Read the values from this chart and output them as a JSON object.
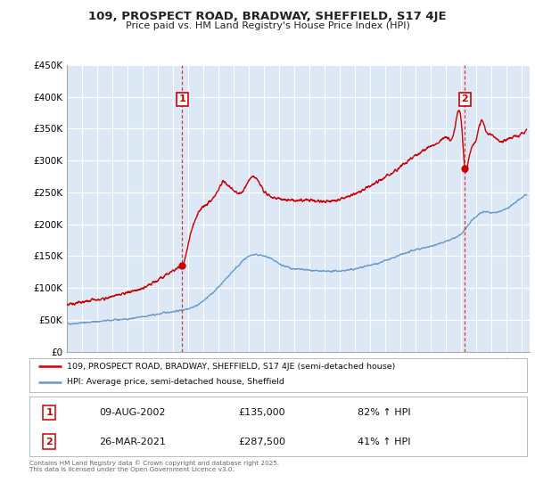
{
  "title": "109, PROSPECT ROAD, BRADWAY, SHEFFIELD, S17 4JE",
  "subtitle": "Price paid vs. HM Land Registry's House Price Index (HPI)",
  "legend_red": "109, PROSPECT ROAD, BRADWAY, SHEFFIELD, S17 4JE (semi-detached house)",
  "legend_blue": "HPI: Average price, semi-detached house, Sheffield",
  "footer": "Contains HM Land Registry data © Crown copyright and database right 2025.\nThis data is licensed under the Open Government Licence v3.0.",
  "xlim": [
    1995.0,
    2025.5
  ],
  "ylim": [
    0,
    450000
  ],
  "yticks": [
    0,
    50000,
    100000,
    150000,
    200000,
    250000,
    300000,
    350000,
    400000,
    450000
  ],
  "ytick_labels": [
    "£0",
    "£50K",
    "£100K",
    "£150K",
    "£200K",
    "£250K",
    "£300K",
    "£350K",
    "£400K",
    "£450K"
  ],
  "xticks": [
    1995,
    1996,
    1997,
    1998,
    1999,
    2000,
    2001,
    2002,
    2003,
    2004,
    2005,
    2006,
    2007,
    2008,
    2009,
    2010,
    2011,
    2012,
    2013,
    2014,
    2015,
    2016,
    2017,
    2018,
    2019,
    2020,
    2021,
    2022,
    2023,
    2024,
    2025
  ],
  "marker1_x": 2002.607,
  "marker1_y": 135000,
  "marker1_label": "1",
  "marker1_date": "09-AUG-2002",
  "marker1_price": "£135,000",
  "marker1_hpi": "82% ↑ HPI",
  "marker2_x": 2021.23,
  "marker2_y": 287500,
  "marker2_label": "2",
  "marker2_date": "26-MAR-2021",
  "marker2_price": "£287,500",
  "marker2_hpi": "41% ↑ HPI",
  "red_color": "#cc0000",
  "blue_color": "#6699cc",
  "background_color": "#dce8f5",
  "grid_color": "#ffffff",
  "vline_color": "#dd3333",
  "blue_anchors_x": [
    1995,
    1995.5,
    1996,
    1996.5,
    1997,
    1997.5,
    1998,
    1998.5,
    1999,
    1999.5,
    2000,
    2000.5,
    2001,
    2001.5,
    2002,
    2002.5,
    2003,
    2003.5,
    2004,
    2004.5,
    2005,
    2005.5,
    2006,
    2006.5,
    2007,
    2007.5,
    2008,
    2008.5,
    2009,
    2009.5,
    2010,
    2010.5,
    2011,
    2011.5,
    2012,
    2012.5,
    2013,
    2013.5,
    2014,
    2014.5,
    2015,
    2015.5,
    2016,
    2016.5,
    2017,
    2017.5,
    2018,
    2018.5,
    2019,
    2019.5,
    2020,
    2020.5,
    2021,
    2021.5,
    2022,
    2022.5,
    2023,
    2023.5,
    2024,
    2024.5,
    2025
  ],
  "blue_anchors_y": [
    44000,
    44500,
    45500,
    46500,
    47500,
    48500,
    49500,
    50500,
    51500,
    53000,
    55000,
    57000,
    59000,
    61500,
    63000,
    65000,
    68000,
    72000,
    80000,
    90000,
    102000,
    115000,
    128000,
    140000,
    150000,
    152000,
    150000,
    145000,
    138000,
    133000,
    130000,
    129000,
    128000,
    127000,
    126000,
    126500,
    127000,
    128000,
    130000,
    133000,
    136000,
    139000,
    143000,
    147000,
    152000,
    156000,
    160000,
    163000,
    166000,
    169000,
    173000,
    178000,
    185000,
    200000,
    213000,
    220000,
    218000,
    220000,
    225000,
    233000,
    242000
  ],
  "red_anchors_x": [
    1995,
    1995.5,
    1996,
    1996.5,
    1997,
    1997.5,
    1998,
    1998.5,
    1999,
    1999.5,
    2000,
    2000.5,
    2001,
    2001.5,
    2002,
    2002.3,
    2002.607,
    2002.8,
    2003,
    2003.3,
    2003.6,
    2004,
    2004.5,
    2005,
    2005.3,
    2005.6,
    2006,
    2006.5,
    2007,
    2007.3,
    2007.5,
    2007.8,
    2008,
    2008.3,
    2008.6,
    2009,
    2009.5,
    2010,
    2010.5,
    2011,
    2011.5,
    2012,
    2012.5,
    2013,
    2013.5,
    2014,
    2014.5,
    2015,
    2015.5,
    2016,
    2016.5,
    2017,
    2017.5,
    2018,
    2018.5,
    2019,
    2019.5,
    2020,
    2020.5,
    2021.0,
    2021.23,
    2021.5,
    2022,
    2022.3,
    2022.6,
    2023,
    2023.3,
    2023.6,
    2024,
    2024.3,
    2024.6,
    2025,
    2025.3
  ],
  "red_anchors_y": [
    75000,
    76000,
    78000,
    80000,
    82000,
    84000,
    87000,
    90000,
    93000,
    96000,
    100000,
    106000,
    113000,
    120000,
    127000,
    131000,
    135000,
    148000,
    170000,
    196000,
    215000,
    228000,
    237000,
    255000,
    267000,
    262000,
    253000,
    250000,
    268000,
    275000,
    272000,
    260000,
    252000,
    246000,
    242000,
    240000,
    238000,
    237000,
    237000,
    238000,
    236000,
    235000,
    237000,
    239000,
    243000,
    248000,
    254000,
    260000,
    267000,
    274000,
    282000,
    291000,
    300000,
    308000,
    316000,
    323000,
    329000,
    336000,
    343000,
    360000,
    287500,
    305000,
    335000,
    362000,
    348000,
    340000,
    335000,
    330000,
    333000,
    336000,
    338000,
    342000,
    348000
  ]
}
